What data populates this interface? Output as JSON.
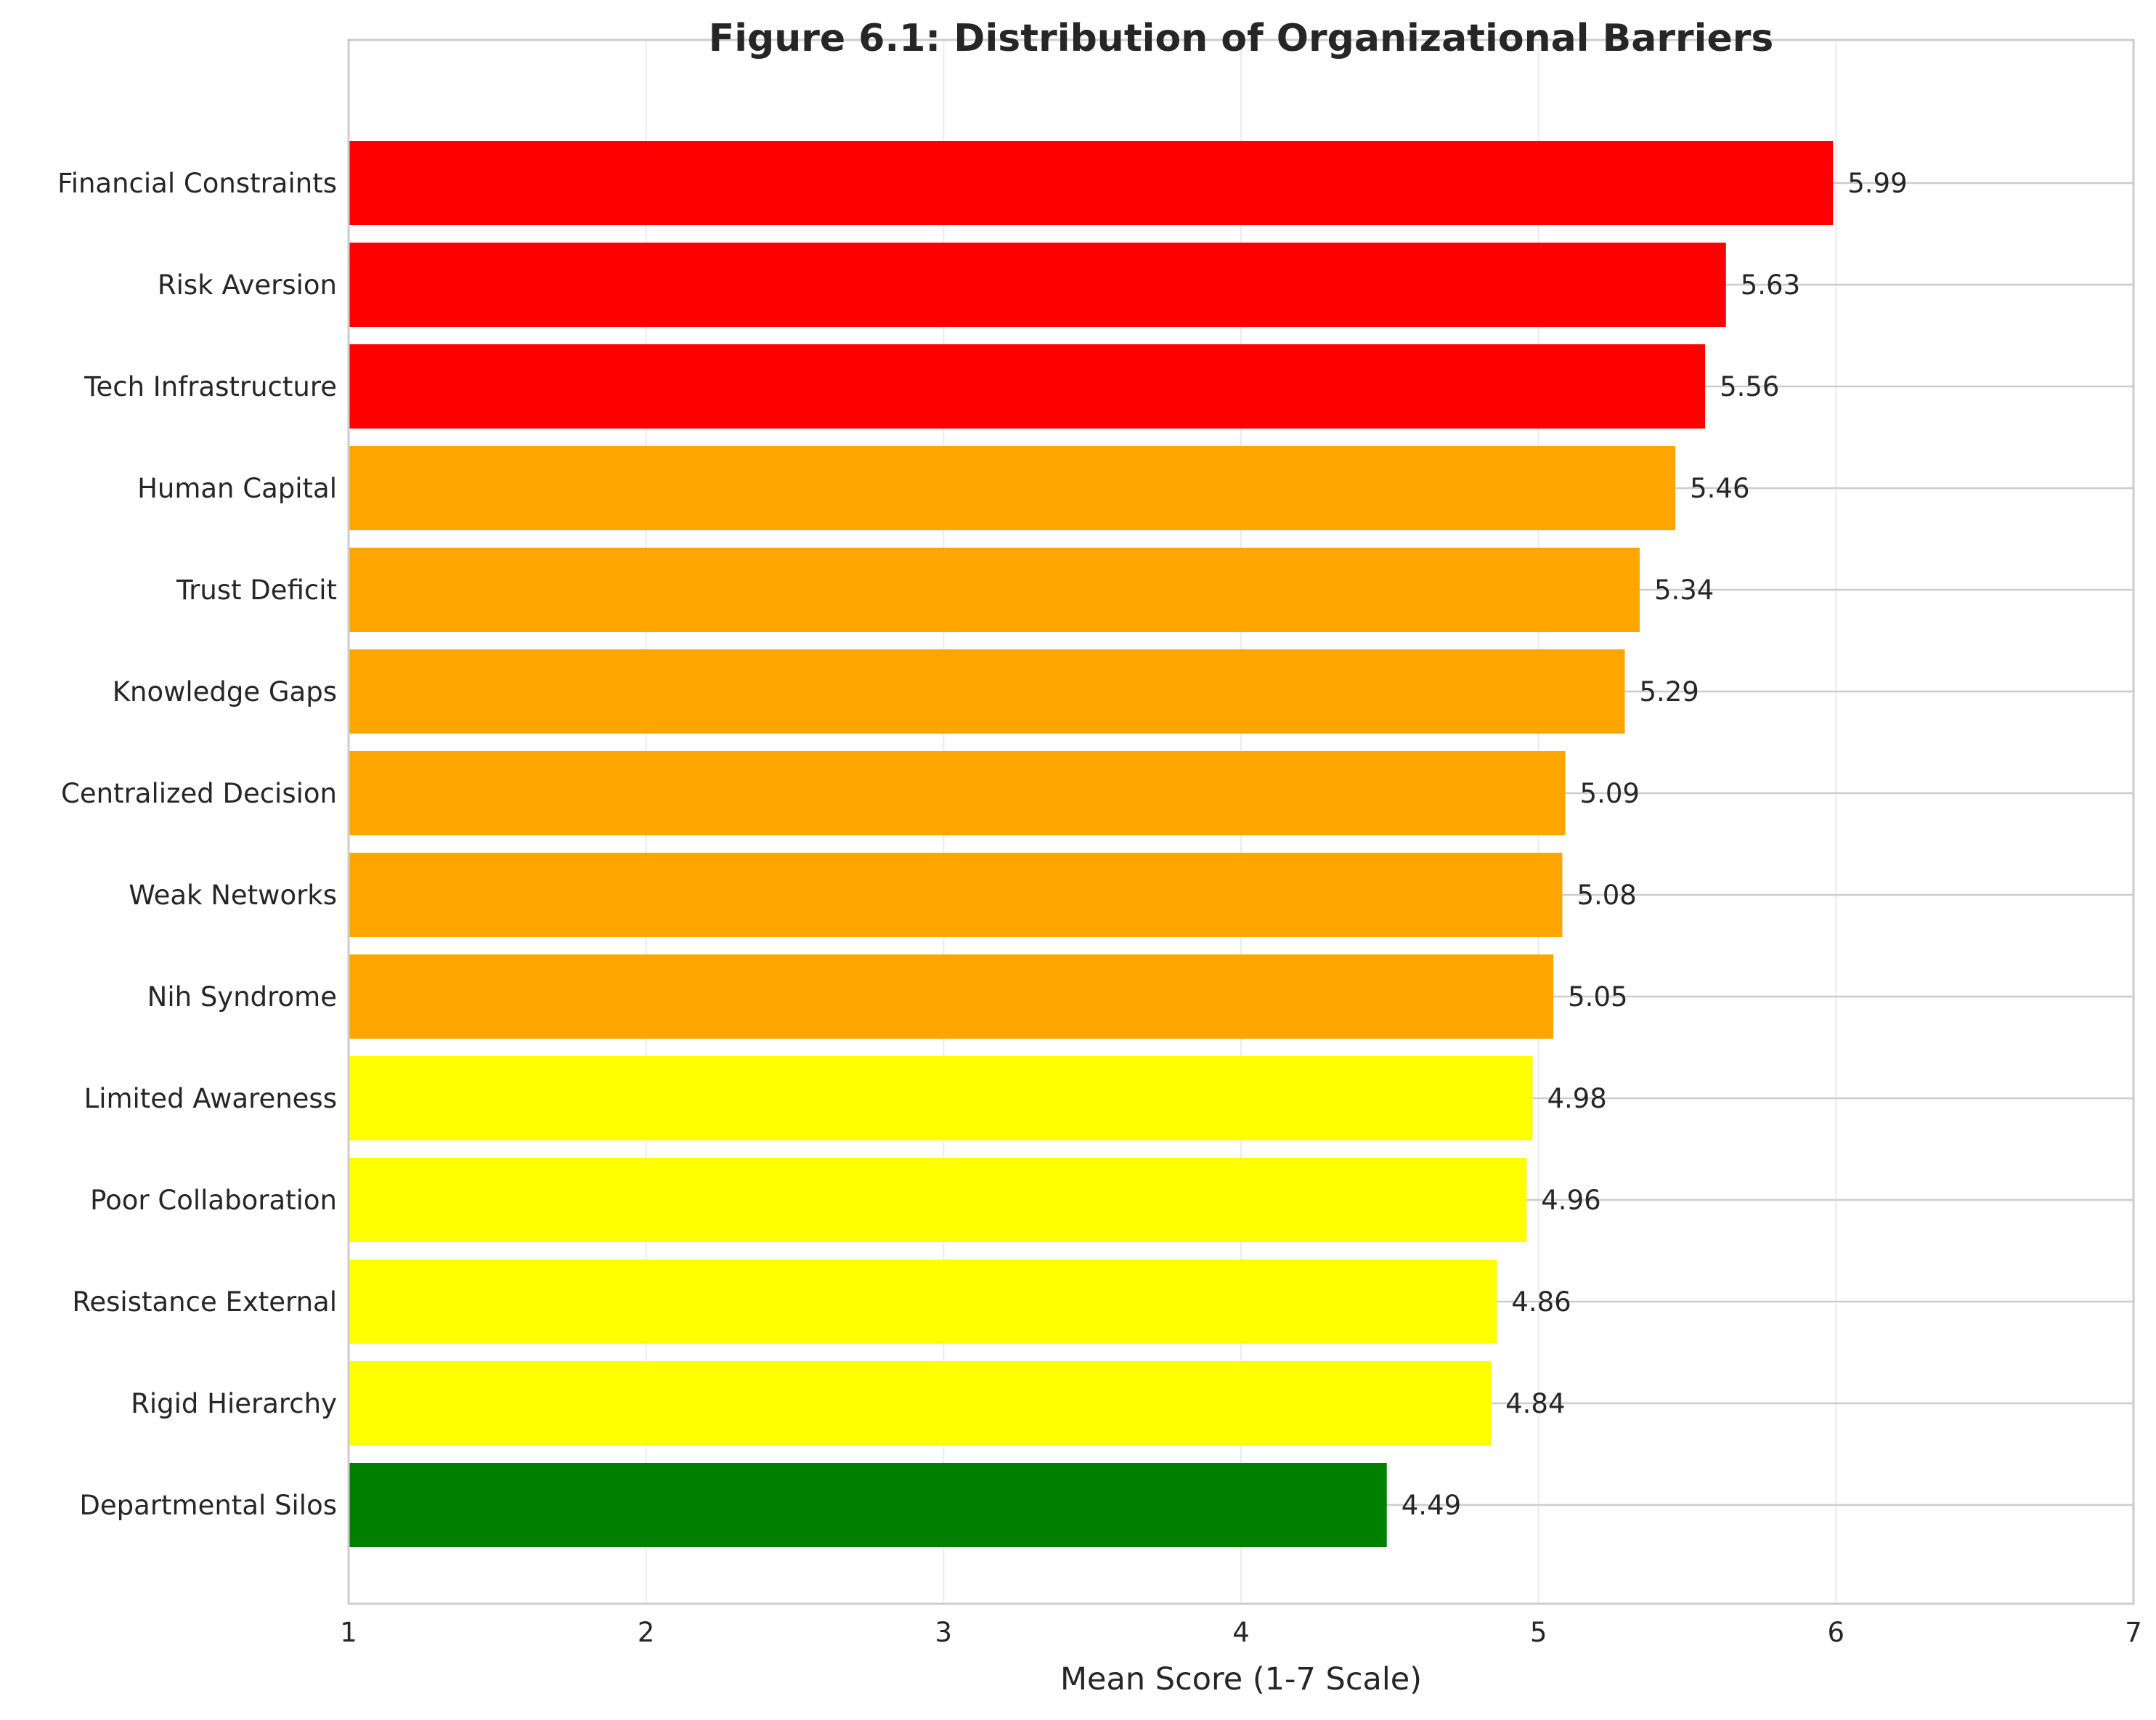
{
  "chart_data": {
    "type": "bar",
    "orientation": "horizontal",
    "title": "Figure 6.1: Distribution of Organizational Barriers",
    "xlabel": "Mean Score (1-7 Scale)",
    "ylabel": "",
    "xlim": [
      1,
      7
    ],
    "x_ticks": [
      "1",
      "2",
      "3",
      "4",
      "5",
      "6",
      "7"
    ],
    "grid": true,
    "categories": [
      "Financial Constraints",
      "Risk Aversion",
      "Tech Infrastructure",
      "Human Capital",
      "Trust Deficit",
      "Knowledge Gaps",
      "Centralized Decision",
      "Weak Networks",
      "Nih Syndrome",
      "Limited Awareness",
      "Poor Collaboration",
      "Resistance External",
      "Rigid Hierarchy",
      "Departmental Silos"
    ],
    "values": [
      5.99,
      5.63,
      5.56,
      5.46,
      5.34,
      5.29,
      5.09,
      5.08,
      5.05,
      4.98,
      4.96,
      4.86,
      4.84,
      4.49
    ],
    "value_labels": [
      "5.99",
      "5.63",
      "5.56",
      "5.46",
      "5.34",
      "5.29",
      "5.09",
      "5.08",
      "5.05",
      "4.98",
      "4.96",
      "4.86",
      "4.84",
      "4.49"
    ],
    "bar_colors": [
      "#ff0000",
      "#ff0000",
      "#ff0000",
      "#ffa500",
      "#ffa500",
      "#ffa500",
      "#ffa500",
      "#ffa500",
      "#ffa500",
      "#ffff00",
      "#ffff00",
      "#ffff00",
      "#ffff00",
      "#008000"
    ]
  }
}
